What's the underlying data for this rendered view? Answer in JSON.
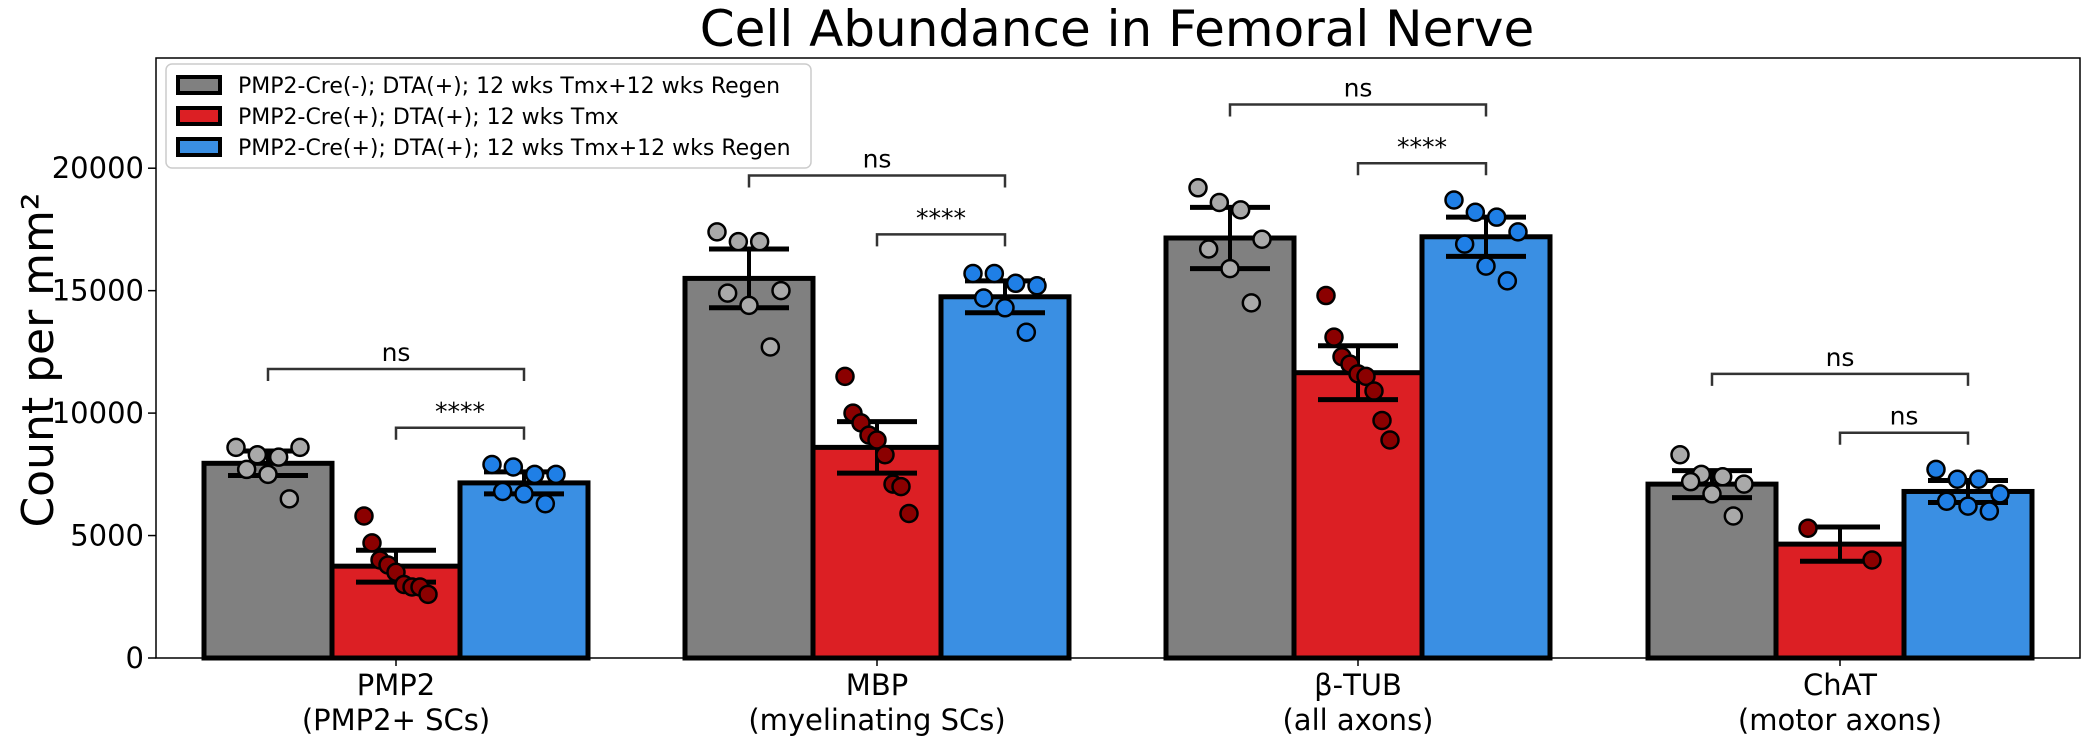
{
  "chart_data": {
    "type": "bar",
    "title": "Cell Abundance in Femoral Nerve",
    "ylabel": "Count per mm²",
    "xlabel": "",
    "ylim": [
      0,
      24500
    ],
    "yticks": [
      0,
      5000,
      10000,
      15000,
      20000
    ],
    "categories": [
      {
        "line1": "PMP2",
        "line2": "(PMP2+ SCs)"
      },
      {
        "line1": "MBP",
        "line2": "(myelinating SCs)"
      },
      {
        "line1": "β-TUB",
        "line2": "(all axons)"
      },
      {
        "line1": "ChAT",
        "line2": "(motor axons)"
      }
    ],
    "legend_position": "top-left",
    "series": [
      {
        "name": "PMP2-Cre(-); DTA(+); 12 wks Tmx+12 wks Regen",
        "color": "#808080",
        "point_color": "#a9a9a9",
        "means": [
          7950,
          15500,
          17150,
          7100
        ],
        "error": [
          500,
          1200,
          1250,
          550
        ],
        "points": [
          [
            8600,
            8300,
            8200,
            8600,
            7700,
            7500,
            6500
          ],
          [
            17400,
            17000,
            17000,
            15000,
            14900,
            14400,
            12700
          ],
          [
            19200,
            18600,
            18300,
            17100,
            16700,
            15900,
            14500
          ],
          [
            8300,
            7500,
            7400,
            7100,
            7200,
            6700,
            5800
          ]
        ]
      },
      {
        "name": "PMP2-Cre(+); DTA(+); 12 wks Tmx",
        "color": "#dc1f24",
        "point_color": "#8b0000",
        "means": [
          3750,
          8600,
          11650,
          4650
        ],
        "error": [
          650,
          1050,
          1100,
          700
        ],
        "points": [
          [
            5800,
            4700,
            4000,
            3800,
            3500,
            3000,
            2900,
            2900,
            2600
          ],
          [
            11500,
            10000,
            9600,
            9100,
            8900,
            8300,
            7100,
            7000,
            5900
          ],
          [
            14800,
            13100,
            12300,
            12000,
            11600,
            11500,
            10900,
            9700,
            8900
          ],
          [
            5300,
            4000
          ]
        ]
      },
      {
        "name": "PMP2-Cre(+); DTA(+); 12 wks Tmx+12 wks Regen",
        "color": "#3a8fe3",
        "point_color": "#1f7fe6",
        "means": [
          7150,
          14750,
          17200,
          6800
        ],
        "error": [
          450,
          650,
          800,
          450
        ],
        "points": [
          [
            7900,
            7800,
            7500,
            7500,
            6800,
            6700,
            6300
          ],
          [
            15700,
            15700,
            15300,
            15200,
            14700,
            14300,
            13300
          ],
          [
            18700,
            18200,
            18000,
            17400,
            16900,
            16000,
            15400
          ],
          [
            7700,
            7300,
            7300,
            6700,
            6400,
            6200,
            6000
          ]
        ]
      }
    ],
    "significance": [
      {
        "group": 0,
        "from": 0,
        "to": 2,
        "y": 11800,
        "label": "ns"
      },
      {
        "group": 0,
        "from": 1,
        "to": 2,
        "y": 9400,
        "label": "****"
      },
      {
        "group": 1,
        "from": 0,
        "to": 2,
        "y": 19700,
        "label": "ns"
      },
      {
        "group": 1,
        "from": 1,
        "to": 2,
        "y": 17300,
        "label": "****"
      },
      {
        "group": 2,
        "from": 0,
        "to": 2,
        "y": 22600,
        "label": "ns"
      },
      {
        "group": 2,
        "from": 1,
        "to": 2,
        "y": 20200,
        "label": "****"
      },
      {
        "group": 3,
        "from": 0,
        "to": 2,
        "y": 11600,
        "label": "ns"
      },
      {
        "group": 3,
        "from": 1,
        "to": 2,
        "y": 9200,
        "label": "ns"
      }
    ]
  }
}
